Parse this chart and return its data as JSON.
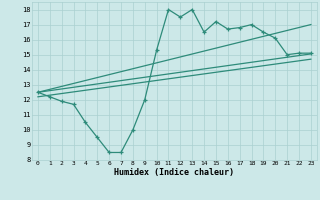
{
  "xlabel": "Humidex (Indice chaleur)",
  "x": [
    0,
    1,
    2,
    3,
    4,
    5,
    6,
    7,
    8,
    9,
    10,
    11,
    12,
    13,
    14,
    15,
    16,
    17,
    18,
    19,
    20,
    21,
    22,
    23
  ],
  "y_data": [
    12.5,
    12.2,
    11.9,
    11.7,
    10.5,
    9.5,
    8.5,
    8.5,
    10.0,
    12.0,
    15.3,
    18.0,
    17.5,
    18.0,
    16.5,
    17.2,
    16.7,
    16.8,
    17.0,
    16.5,
    16.1,
    15.0,
    15.1,
    15.1
  ],
  "line1_x": [
    0,
    23
  ],
  "line1_y": [
    12.5,
    15.05
  ],
  "line2_x": [
    0,
    23
  ],
  "line2_y": [
    12.5,
    17.0
  ],
  "line3_x": [
    0,
    23
  ],
  "line3_y": [
    12.2,
    14.7
  ],
  "ylim": [
    8,
    18.5
  ],
  "xlim": [
    -0.5,
    23.5
  ],
  "yticks": [
    8,
    9,
    10,
    11,
    12,
    13,
    14,
    15,
    16,
    17,
    18
  ],
  "xticks": [
    0,
    1,
    2,
    3,
    4,
    5,
    6,
    7,
    8,
    9,
    10,
    11,
    12,
    13,
    14,
    15,
    16,
    17,
    18,
    19,
    20,
    21,
    22,
    23
  ],
  "line_color": "#2e8b7a",
  "bg_color": "#cce8e8",
  "grid_color": "#aad0d0"
}
